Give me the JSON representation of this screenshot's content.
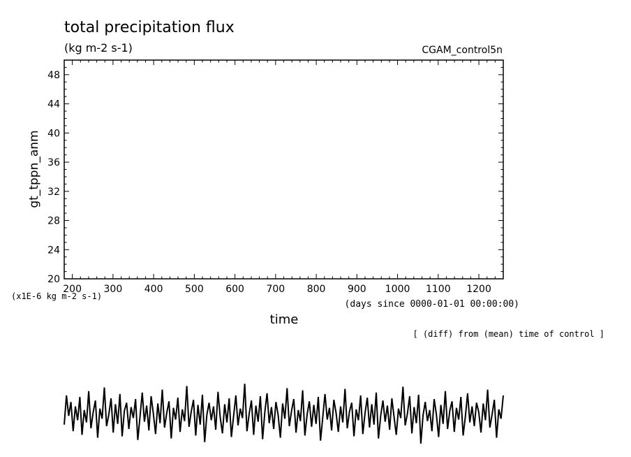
{
  "chart_data": {
    "type": "line",
    "title": "total precipitation flux",
    "units": "(kg m-2 s-1)",
    "run_label": "CGAM_control5n",
    "ylabel": "gt_tppn_anm",
    "y_scale_note": "(x1E-6 kg m-2 s-1)",
    "xlabel": "time",
    "x_units": "(days since 0000-01-01 00:00:00)",
    "footnote": "[ (diff) from (mean) time of control ]",
    "xlim": [
      180,
      1260
    ],
    "ylim": [
      20,
      50
    ],
    "x_ticks": [
      "200",
      "300",
      "400",
      "500",
      "600",
      "700",
      "800",
      "900",
      "1000",
      "1100",
      "1200"
    ],
    "y_ticks": [
      "20",
      "24",
      "28",
      "32",
      "36",
      "40",
      "44",
      "48"
    ],
    "grid": false,
    "series": [
      {
        "color": "#000000",
        "x_start": 180,
        "x_end": 1260,
        "points_per_year": 12,
        "values": [
          -0.0,
          4.0,
          1.2,
          3.1,
          -0.9,
          2.5,
          0.6,
          3.8,
          -1.4,
          2.0,
          0.3,
          4.6,
          -0.5,
          1.7,
          3.3,
          -1.8,
          2.2,
          0.8,
          5.1,
          -0.2,
          1.4,
          3.6,
          -1.1,
          2.8,
          0.1,
          4.2,
          -1.6,
          1.9,
          3.0,
          -0.6,
          2.4,
          0.9,
          3.5,
          -2.1,
          1.1,
          4.4,
          0.4,
          2.6,
          -0.8,
          3.9,
          1.5,
          -1.3,
          2.9,
          0.2,
          4.8,
          -0.4,
          1.6,
          3.2,
          -1.9,
          2.3,
          0.7,
          3.7,
          -1.0,
          2.1,
          0.5,
          5.3,
          -0.3,
          1.8,
          3.4,
          -1.5,
          2.7,
          0.0,
          4.1,
          -2.4,
          1.3,
          3.0,
          0.6,
          2.5,
          -0.7,
          4.5,
          1.0,
          -1.2,
          2.8,
          0.3,
          3.6,
          -1.7,
          1.2,
          4.0,
          -0.1,
          2.2,
          0.9,
          5.6,
          -0.9,
          1.5,
          3.3,
          -1.4,
          2.6,
          0.4,
          3.9,
          -2.0,
          1.7,
          4.3,
          0.2,
          2.4,
          -0.6,
          3.1,
          1.3,
          -1.8,
          2.9,
          0.8,
          5.0,
          -0.2,
          1.9,
          3.5,
          -1.1,
          2.0,
          0.5,
          4.7,
          -1.5,
          1.4,
          3.2,
          -0.3,
          2.7,
          0.1,
          3.8,
          -2.2,
          1.0,
          4.2,
          0.7,
          2.3,
          -0.8,
          3.4,
          1.6,
          -1.0,
          2.5,
          0.3,
          4.9,
          -0.5,
          1.8,
          3.0,
          -1.6,
          2.1,
          0.6,
          4.0,
          -1.3,
          1.6,
          3.7,
          -0.4,
          2.8,
          0.0,
          4.4,
          -1.9,
          1.2,
          3.3,
          0.4,
          2.6,
          -0.7,
          3.6,
          1.1,
          -1.4,
          2.2,
          0.9,
          5.2,
          -0.1,
          1.5,
          3.9,
          -1.2,
          2.4,
          0.2,
          4.1,
          -2.6,
          1.3,
          3.1,
          0.5,
          2.0,
          -0.9,
          3.5,
          1.4,
          -1.7,
          2.7,
          0.1,
          4.6,
          -0.6,
          1.9,
          3.2,
          -1.0,
          2.3,
          0.7,
          3.8,
          -1.5,
          1.1,
          4.3,
          0.3,
          2.5,
          -0.2,
          3.0,
          1.7,
          -1.1,
          2.9,
          0.6,
          4.8,
          -0.4,
          1.4,
          3.4,
          -1.8,
          2.1,
          0.8,
          4.0
        ]
      }
    ]
  }
}
